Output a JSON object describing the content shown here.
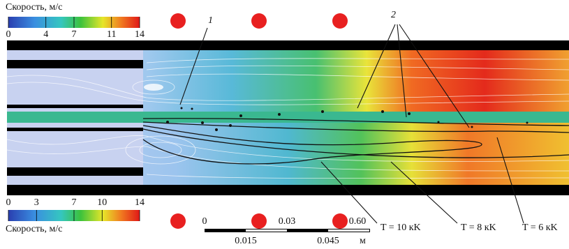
{
  "legend_top": {
    "title": "Скорость, м/с",
    "ticks": [
      0,
      4,
      7,
      11,
      14
    ],
    "range": [
      0,
      14
    ]
  },
  "legend_bottom": {
    "title": "Скорость, м/с",
    "ticks": [
      0,
      3,
      7,
      10,
      14
    ],
    "range": [
      0,
      14
    ]
  },
  "callouts": [
    "1",
    "2"
  ],
  "scale_bar": {
    "labels_top": [
      "0",
      "0.03",
      "0.60"
    ],
    "labels_bottom": [
      "0.015",
      "0.045"
    ],
    "unit": "м"
  },
  "isotherms": [
    "T = 10 кK",
    "T = 8 кK",
    "T = 6 кK"
  ]
}
